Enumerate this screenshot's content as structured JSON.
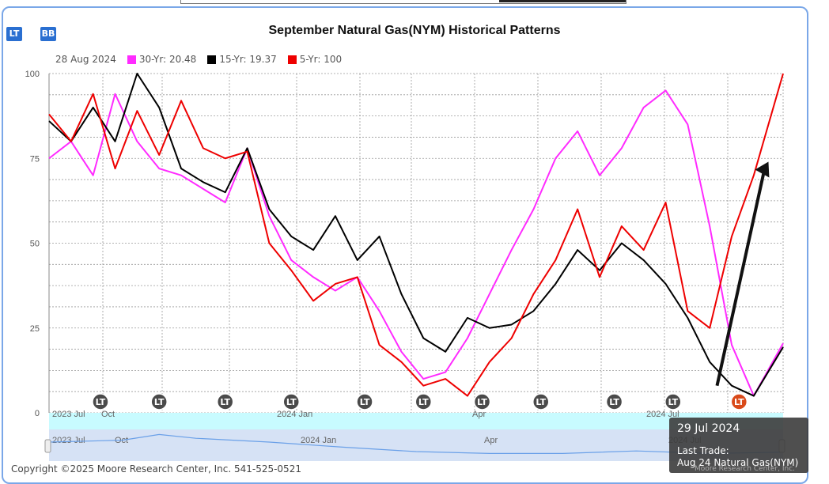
{
  "buttons": {
    "lt": "LT",
    "bb": "BB"
  },
  "chart_data": {
    "type": "line",
    "title": "September Natural Gas(NYM) Historical Patterns",
    "legend_date": "28 Aug 2024",
    "ylim": [
      0,
      100
    ],
    "yticks": [
      "0",
      "25",
      "50",
      "75",
      "100"
    ],
    "xticks": [
      "2023 Jul",
      "Oct",
      "2024 Jan",
      "Apr",
      "2024 Jul"
    ],
    "navigator_ticks": [
      "2023 Jul",
      "Oct",
      "2024 Jan",
      "Apr",
      "2024 Jul"
    ],
    "grid": true,
    "x_domain": [
      0,
      100
    ],
    "series": [
      {
        "name": "30-Yr: 20.48",
        "color": "#ff2bff",
        "x": [
          0,
          3,
          6,
          9,
          12,
          15,
          18,
          21,
          24,
          27,
          30,
          33,
          36,
          39,
          42,
          45,
          48,
          51,
          54,
          57,
          60,
          63,
          66,
          69,
          72,
          75,
          78,
          81,
          84,
          87,
          90,
          93,
          96,
          100
        ],
        "values": [
          75,
          80,
          70,
          94,
          80,
          72,
          70,
          66,
          62,
          78,
          58,
          45,
          40,
          36,
          40,
          30,
          18,
          10,
          12,
          22,
          35,
          48,
          60,
          75,
          83,
          70,
          78,
          90,
          95,
          85,
          55,
          20,
          5,
          20.48
        ]
      },
      {
        "name": "15-Yr: 19.37",
        "color": "#000000",
        "x": [
          0,
          3,
          6,
          9,
          12,
          15,
          18,
          21,
          24,
          27,
          30,
          33,
          36,
          39,
          42,
          45,
          48,
          51,
          54,
          57,
          60,
          63,
          66,
          69,
          72,
          75,
          78,
          81,
          84,
          87,
          90,
          93,
          96,
          100
        ],
        "values": [
          86,
          80,
          90,
          80,
          100,
          90,
          72,
          68,
          65,
          78,
          60,
          52,
          48,
          58,
          45,
          52,
          35,
          22,
          18,
          28,
          25,
          26,
          30,
          38,
          48,
          42,
          50,
          45,
          38,
          28,
          15,
          8,
          5,
          19.37
        ]
      },
      {
        "name": "5-Yr: 100",
        "color": "#ee0000",
        "x": [
          0,
          3,
          6,
          9,
          12,
          15,
          18,
          21,
          24,
          27,
          30,
          33,
          36,
          39,
          42,
          45,
          48,
          51,
          54,
          57,
          60,
          63,
          66,
          69,
          72,
          75,
          78,
          81,
          84,
          87,
          90,
          93,
          96,
          100
        ],
        "values": [
          88,
          80,
          94,
          72,
          89,
          76,
          92,
          78,
          75,
          77,
          50,
          42,
          33,
          38,
          40,
          20,
          15,
          8,
          10,
          5,
          15,
          22,
          35,
          45,
          60,
          40,
          55,
          48,
          62,
          30,
          25,
          52,
          70,
          100
        ]
      }
    ],
    "navigator_line": {
      "x": [
        0,
        10,
        15,
        20,
        30,
        40,
        50,
        60,
        70,
        80,
        90,
        100
      ],
      "values": [
        3,
        3.3,
        4.2,
        3.6,
        3,
        2.2,
        1.5,
        1.2,
        1.2,
        1.6,
        1.2,
        1.4
      ]
    },
    "lt_markers": [
      7,
      15,
      24,
      33,
      43,
      51,
      59,
      67,
      77,
      85,
      94
    ],
    "lt_label": "LT",
    "arrow": {
      "from": [
        91,
        8
      ],
      "to": [
        98,
        74
      ]
    }
  },
  "tooltip": {
    "date": "29 Jul 2024",
    "line1": "Last Trade:",
    "line2": "Aug 24 Natural Gas(NYM)"
  },
  "footer": {
    "copyright": "Copyright ©2025 Moore Research Center, Inc. 541-525-0521",
    "credit": "Moore Research Center, Inc."
  }
}
